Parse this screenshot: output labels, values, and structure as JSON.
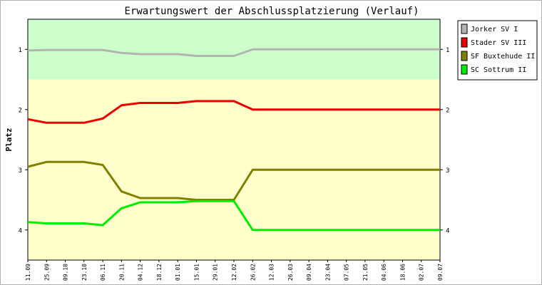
{
  "chart_data": {
    "type": "line",
    "title": "Erwartungswert der Abschlussplatzierung (Verlauf)",
    "xlabel": "",
    "ylabel": "Platz",
    "ylim": [
      4.5,
      0.5
    ],
    "y_inverted": true,
    "y_ticks": [
      "1",
      "2",
      "3",
      "4"
    ],
    "grid": false,
    "legend_position": "top-right",
    "bands": [
      {
        "from": 0.5,
        "to": 1.5,
        "color": "#ccffcc"
      },
      {
        "from": 1.5,
        "to": 4.5,
        "color": "#ffffcc"
      }
    ],
    "x": [
      "11.09",
      "25.09",
      "09.10",
      "23.10",
      "06.11",
      "20.11",
      "04.12",
      "18.12",
      "01.01",
      "15.01",
      "29.01",
      "12.02",
      "26.02",
      "12.03",
      "26.03",
      "09.04",
      "23.04",
      "07.05",
      "21.05",
      "04.06",
      "18.06",
      "02.07",
      "09.07"
    ],
    "series": [
      {
        "name": "Jorker SV I",
        "color": "#b4b4b4",
        "values": [
          1.02,
          1.01,
          1.01,
          1.01,
          1.01,
          1.06,
          1.08,
          1.08,
          1.08,
          1.11,
          1.11,
          1.11,
          1.0,
          1.0,
          1.0,
          1.0,
          1.0,
          1.0,
          1.0,
          1.0,
          1.0,
          1.0,
          1.0
        ]
      },
      {
        "name": "Stader SV III",
        "color": "#ee0000",
        "values": [
          2.16,
          2.22,
          2.22,
          2.22,
          2.15,
          1.93,
          1.89,
          1.89,
          1.89,
          1.86,
          1.86,
          1.86,
          2.0,
          2.0,
          2.0,
          2.0,
          2.0,
          2.0,
          2.0,
          2.0,
          2.0,
          2.0,
          2.0
        ]
      },
      {
        "name": "SF Buxtehude II",
        "color": "#808000",
        "values": [
          2.95,
          2.87,
          2.87,
          2.87,
          2.92,
          3.36,
          3.47,
          3.47,
          3.47,
          3.5,
          3.5,
          3.5,
          3.0,
          3.0,
          3.0,
          3.0,
          3.0,
          3.0,
          3.0,
          3.0,
          3.0,
          3.0,
          3.0
        ]
      },
      {
        "name": "SC Sottrum II",
        "color": "#00ee00",
        "values": [
          3.87,
          3.89,
          3.89,
          3.89,
          3.92,
          3.64,
          3.54,
          3.54,
          3.54,
          3.52,
          3.52,
          3.52,
          4.0,
          4.0,
          4.0,
          4.0,
          4.0,
          4.0,
          4.0,
          4.0,
          4.0,
          4.0,
          4.0
        ]
      }
    ]
  }
}
